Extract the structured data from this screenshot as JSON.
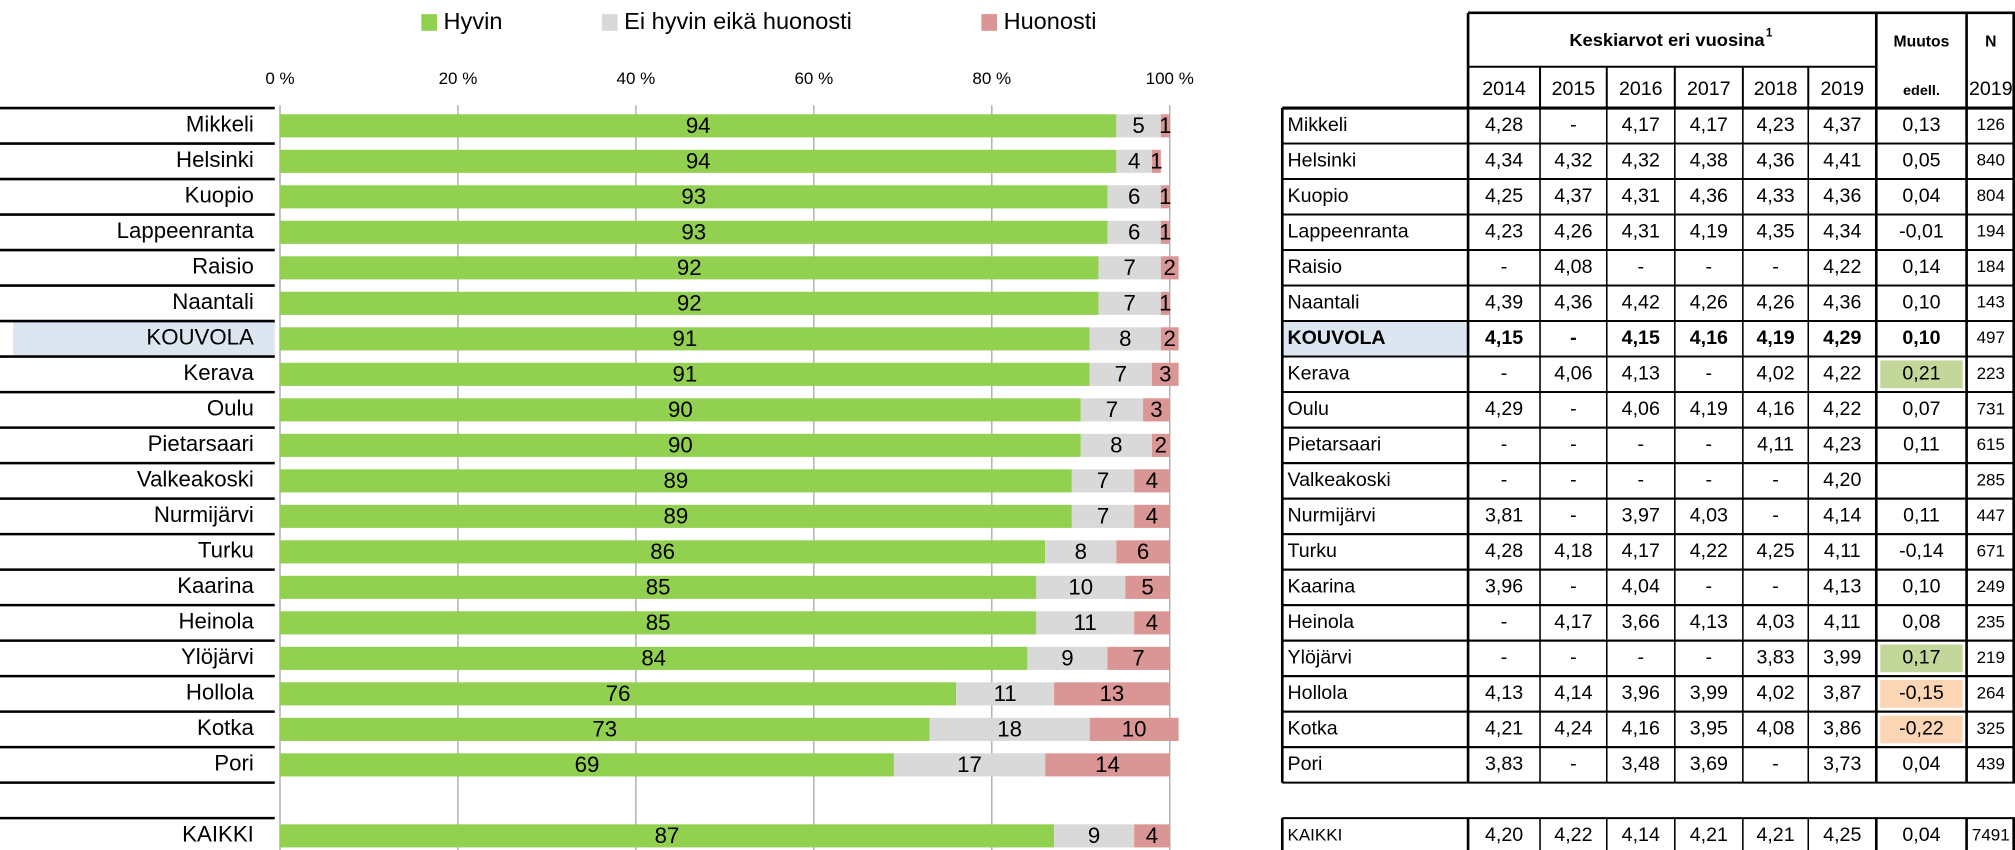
{
  "chart_data": {
    "type": "stacked_barh",
    "categories": [
      "Mikkeli",
      "Helsinki",
      "Kuopio",
      "Lappeenranta",
      "Raisio",
      "Naantali",
      "KOUVOLA",
      "Kerava",
      "Oulu",
      "Pietarsaari",
      "Valkeakoski",
      "Nurmijärvi",
      "Turku",
      "Kaarina",
      "Heinola",
      "Ylöjärvi",
      "Hollola",
      "Kotka",
      "Pori",
      "KAIKKI"
    ],
    "highlight_row": 6,
    "series": [
      {
        "name": "Hyvin",
        "color": "#92d050",
        "values": [
          94,
          94,
          93,
          93,
          92,
          92,
          91,
          91,
          90,
          90,
          89,
          89,
          86,
          85,
          85,
          84,
          76,
          73,
          69,
          87
        ]
      },
      {
        "name": "Ei hyvin eikä huonosti",
        "color": "#d9d9d9",
        "values": [
          5,
          4,
          6,
          6,
          7,
          7,
          8,
          7,
          7,
          8,
          7,
          7,
          8,
          10,
          11,
          9,
          11,
          18,
          17,
          9
        ]
      },
      {
        "name": "Huonosti",
        "color": "#da9694",
        "values": [
          1,
          1,
          1,
          1,
          2,
          1,
          2,
          3,
          3,
          2,
          4,
          4,
          6,
          5,
          4,
          7,
          13,
          10,
          14,
          4
        ]
      }
    ],
    "xlim": [
      0,
      100
    ],
    "xticks": [
      {
        "value": 0,
        "label": "0 %"
      },
      {
        "value": 20,
        "label": "20 %"
      },
      {
        "value": 40,
        "label": "40 %"
      },
      {
        "value": 60,
        "label": "60 %"
      },
      {
        "value": 80,
        "label": "80 %"
      },
      {
        "value": 100,
        "label": "100 %"
      }
    ],
    "grid": true
  },
  "table": {
    "title": "Keskiarvot eri vuosina",
    "title_note": "1",
    "years": [
      "2014",
      "2015",
      "2016",
      "2017",
      "2018",
      "2019"
    ],
    "change_header": "Muutos",
    "change_sub": "edell.",
    "n_header": "N",
    "n_sub": "2019",
    "rows": [
      {
        "name": "Mikkeli",
        "values": [
          "4,28",
          "-",
          "4,17",
          "4,17",
          "4,23",
          "4,37"
        ],
        "change": "0,13",
        "n": "126"
      },
      {
        "name": "Helsinki",
        "values": [
          "4,34",
          "4,32",
          "4,32",
          "4,38",
          "4,36",
          "4,41"
        ],
        "change": "0,05",
        "n": "840"
      },
      {
        "name": "Kuopio",
        "values": [
          "4,25",
          "4,37",
          "4,31",
          "4,36",
          "4,33",
          "4,36"
        ],
        "change": "0,04",
        "n": "804"
      },
      {
        "name": "Lappeenranta",
        "values": [
          "4,23",
          "4,26",
          "4,31",
          "4,19",
          "4,35",
          "4,34"
        ],
        "change": "-0,01",
        "n": "194"
      },
      {
        "name": "Raisio",
        "values": [
          "-",
          "4,08",
          "-",
          "-",
          "-",
          "4,22"
        ],
        "change": "0,14",
        "n": "184"
      },
      {
        "name": "Naantali",
        "values": [
          "4,39",
          "4,36",
          "4,42",
          "4,26",
          "4,26",
          "4,36"
        ],
        "change": "0,10",
        "n": "143"
      },
      {
        "name": "KOUVOLA",
        "values": [
          "4,15",
          "-",
          "4,15",
          "4,16",
          "4,19",
          "4,29"
        ],
        "change": "0,10",
        "n": "497"
      },
      {
        "name": "Kerava",
        "values": [
          "-",
          "4,06",
          "4,13",
          "-",
          "4,02",
          "4,22"
        ],
        "change": "0,21",
        "n": "223",
        "change_color": "#c4d79b"
      },
      {
        "name": "Oulu",
        "values": [
          "4,29",
          "-",
          "4,06",
          "4,19",
          "4,16",
          "4,22"
        ],
        "change": "0,07",
        "n": "731"
      },
      {
        "name": "Pietarsaari",
        "values": [
          "-",
          "-",
          "-",
          "-",
          "4,11",
          "4,23"
        ],
        "change": "0,11",
        "n": "615"
      },
      {
        "name": "Valkeakoski",
        "values": [
          "-",
          "-",
          "-",
          "-",
          "-",
          "4,20"
        ],
        "change": null,
        "n": "285"
      },
      {
        "name": "Nurmijärvi",
        "values": [
          "3,81",
          "-",
          "3,97",
          "4,03",
          "-",
          "4,14"
        ],
        "change": "0,11",
        "n": "447"
      },
      {
        "name": "Turku",
        "values": [
          "4,28",
          "4,18",
          "4,17",
          "4,22",
          "4,25",
          "4,11"
        ],
        "change": "-0,14",
        "n": "671"
      },
      {
        "name": "Kaarina",
        "values": [
          "3,96",
          "-",
          "4,04",
          "-",
          "-",
          "4,13"
        ],
        "change": "0,10",
        "n": "249"
      },
      {
        "name": "Heinola",
        "values": [
          "-",
          "4,17",
          "3,66",
          "4,13",
          "4,03",
          "4,11"
        ],
        "change": "0,08",
        "n": "235"
      },
      {
        "name": "Ylöjärvi",
        "values": [
          "-",
          "-",
          "-",
          "-",
          "3,83",
          "3,99"
        ],
        "change": "0,17",
        "n": "219",
        "change_color": "#c4d79b"
      },
      {
        "name": "Hollola",
        "values": [
          "4,13",
          "4,14",
          "3,96",
          "3,99",
          "4,02",
          "3,87"
        ],
        "change": "-0,15",
        "n": "264",
        "change_color": "#fcd5b4"
      },
      {
        "name": "Kotka",
        "values": [
          "4,21",
          "4,24",
          "4,16",
          "3,95",
          "4,08",
          "3,86"
        ],
        "change": "-0,22",
        "n": "325",
        "change_color": "#fcd5b4"
      },
      {
        "name": "Pori",
        "values": [
          "3,83",
          "-",
          "3,48",
          "3,69",
          "-",
          "3,73"
        ],
        "change": "0,04",
        "n": "439"
      },
      {
        "name": "KAIKKI",
        "values": [
          "4,20",
          "4,22",
          "4,14",
          "4,21",
          "4,21",
          "4,25"
        ],
        "change": "0,04",
        "n": "7491"
      }
    ]
  }
}
